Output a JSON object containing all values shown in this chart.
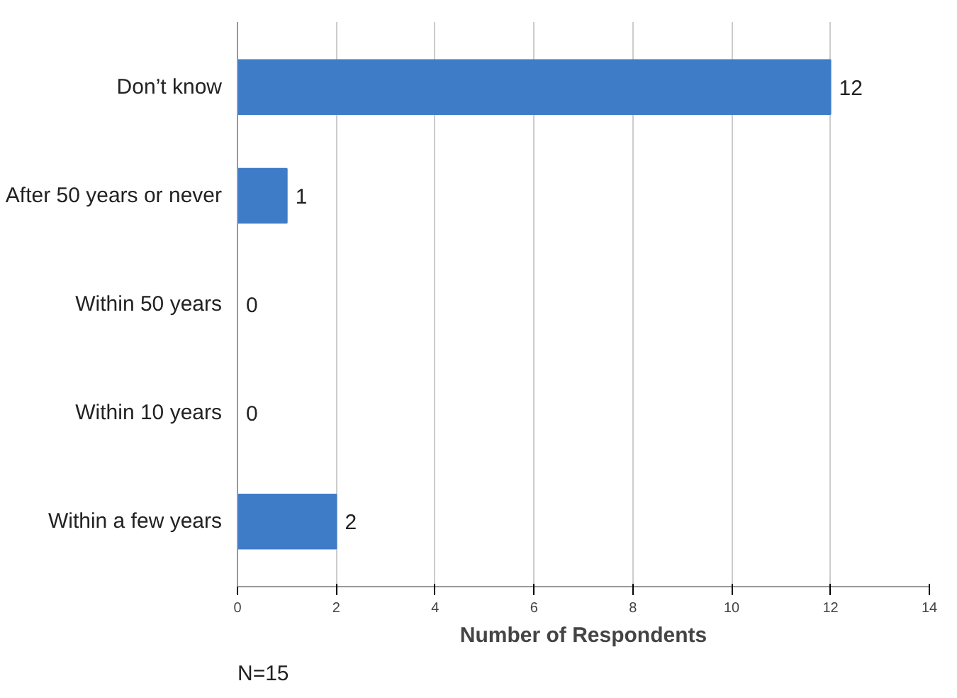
{
  "chart_data": {
    "type": "bar",
    "orientation": "horizontal",
    "categories": [
      "Don’t know",
      "After 50 years or never",
      "Within 50 years",
      "Within 10 years",
      "Within a few years"
    ],
    "values": [
      12,
      1,
      0,
      0,
      2
    ],
    "color": "#3f7cc8",
    "xlim": [
      0,
      14
    ],
    "xticks": [
      0,
      2,
      4,
      6,
      8,
      10,
      12,
      14
    ],
    "xlabel": "Number of Respondents",
    "grid": "x",
    "data_labels": true,
    "annotations": [
      "N=15"
    ]
  }
}
